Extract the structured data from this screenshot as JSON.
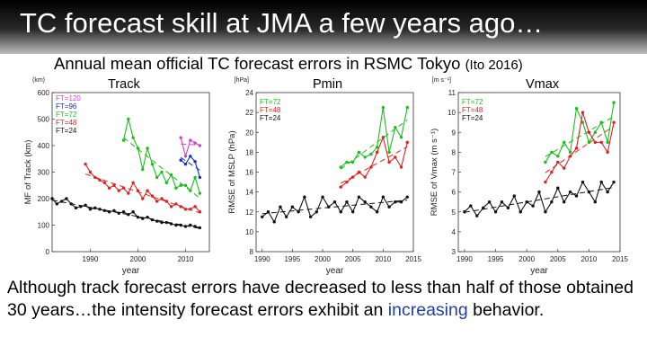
{
  "slide": {
    "title": "TC forecast skill at JMA a few years ago…",
    "caption": "Annual mean official TC forecast errors in RSMC Tokyo",
    "citation": "(Ito 2016)",
    "body_before": "Although track forecast errors have decreased to less than half of those obtained 30 years…the intensity forecast errors exhibit an ",
    "body_highlight": "increasing",
    "body_after": " behavior.",
    "highlight_color": "#1f3fa0"
  },
  "chart_data": [
    {
      "type": "line",
      "panel_label": "Track",
      "xlabel": "year",
      "ylabel": "MF of Track (km)",
      "unit_label": "(km)",
      "xlim": [
        1982,
        2015
      ],
      "ylim": [
        0,
        600
      ],
      "xticks": [
        1990,
        2000,
        2010
      ],
      "yticks": [
        0,
        100,
        200,
        300,
        400,
        500,
        600
      ],
      "legend_position": "top-left",
      "series": [
        {
          "name": "FT=120",
          "color": "#cc44cc",
          "marker": "dot",
          "x": [
            2009,
            2010,
            2011,
            2012,
            2013
          ],
          "y": [
            430,
            360,
            420,
            410,
            400
          ]
        },
        {
          "name": "FT=96",
          "color": "#1030cc",
          "marker": "dot",
          "x": [
            2009,
            2010,
            2011,
            2012,
            2013
          ],
          "y": [
            345,
            330,
            360,
            340,
            280
          ]
        },
        {
          "name": "FT=72",
          "color": "#1bbf1b",
          "marker": "dot",
          "x": [
            1997,
            1998,
            1999,
            2000,
            2001,
            2002,
            2003,
            2004,
            2005,
            2006,
            2007,
            2008,
            2009,
            2010,
            2011,
            2012,
            2013
          ],
          "y": [
            420,
            500,
            430,
            390,
            310,
            390,
            330,
            280,
            300,
            260,
            290,
            240,
            250,
            250,
            230,
            280,
            220
          ]
        },
        {
          "name": "FT=48",
          "color": "#dd2222",
          "marker": "dot",
          "x": [
            1989,
            1990,
            1991,
            1992,
            1993,
            1994,
            1995,
            1996,
            1997,
            1998,
            1999,
            2000,
            2001,
            2002,
            2003,
            2004,
            2005,
            2006,
            2007,
            2008,
            2009,
            2010,
            2011,
            2012,
            2013
          ],
          "y": [
            330,
            300,
            280,
            270,
            260,
            240,
            250,
            230,
            240,
            220,
            260,
            230,
            200,
            230,
            210,
            190,
            200,
            190,
            170,
            180,
            170,
            160,
            160,
            170,
            150
          ]
        },
        {
          "name": "FT=24",
          "color": "#111111",
          "marker": "dot",
          "x": [
            1982,
            1983,
            1984,
            1985,
            1986,
            1987,
            1988,
            1989,
            1990,
            1991,
            1992,
            1993,
            1994,
            1995,
            1996,
            1997,
            1998,
            1999,
            2000,
            2001,
            2002,
            2003,
            2004,
            2005,
            2006,
            2007,
            2008,
            2009,
            2010,
            2011,
            2012,
            2013
          ],
          "y": [
            200,
            180,
            190,
            200,
            180,
            165,
            170,
            175,
            160,
            165,
            160,
            155,
            150,
            155,
            145,
            150,
            140,
            150,
            130,
            125,
            130,
            120,
            115,
            110,
            110,
            105,
            100,
            100,
            95,
            100,
            95,
            90
          ]
        }
      ]
    },
    {
      "type": "line",
      "panel_label": "Pmin",
      "xlabel": "year",
      "ylabel": "RMSE of MSLP (hPa)",
      "unit_label": "[hPa]",
      "xlim": [
        1989,
        2015
      ],
      "ylim": [
        8,
        24
      ],
      "xticks": [
        1990,
        1995,
        2000,
        2005,
        2010,
        2015
      ],
      "yticks": [
        8,
        10,
        12,
        14,
        16,
        18,
        20,
        22,
        24
      ],
      "legend_position": "top-left",
      "series": [
        {
          "name": "FT=72",
          "color": "#1bbf1b",
          "marker": "dot",
          "x": [
            2003,
            2004,
            2005,
            2006,
            2007,
            2008,
            2009,
            2010,
            2011,
            2012,
            2013,
            2014
          ],
          "y": [
            16.5,
            17.0,
            17.0,
            18.0,
            17.5,
            17.8,
            18.5,
            22.5,
            18.0,
            20.5,
            19.5,
            22.5
          ]
        },
        {
          "name": "FT=48",
          "color": "#dd2222",
          "marker": "dot",
          "x": [
            2003,
            2004,
            2005,
            2006,
            2007,
            2008,
            2009,
            2010,
            2011,
            2012,
            2013,
            2014
          ],
          "y": [
            14.5,
            15.0,
            15.5,
            16.0,
            15.5,
            16.5,
            18.0,
            19.5,
            17.0,
            17.5,
            16.5,
            19.0
          ]
        },
        {
          "name": "FT=24",
          "color": "#111111",
          "marker": "dot",
          "x": [
            1990,
            1991,
            1992,
            1993,
            1994,
            1995,
            1996,
            1997,
            1998,
            1999,
            2000,
            2001,
            2002,
            2003,
            2004,
            2005,
            2006,
            2007,
            2008,
            2009,
            2010,
            2011,
            2012,
            2013,
            2014
          ],
          "y": [
            11.5,
            12.0,
            11.0,
            12.5,
            11.5,
            12.5,
            12.0,
            13.5,
            11.5,
            12.0,
            13.5,
            12.5,
            13.0,
            12.0,
            13.0,
            12.0,
            13.5,
            13.0,
            12.5,
            12.0,
            13.5,
            12.5,
            13.0,
            13.0,
            13.5
          ]
        }
      ]
    },
    {
      "type": "line",
      "panel_label": "Vmax",
      "xlabel": "year",
      "ylabel": "RMSE of Vmax (m s⁻¹)",
      "unit_label": "[m s⁻¹]",
      "xlim": [
        1989,
        2015
      ],
      "ylim": [
        3,
        11
      ],
      "xticks": [
        1990,
        1995,
        2000,
        2005,
        2010,
        2015
      ],
      "yticks": [
        3,
        4,
        5,
        6,
        7,
        8,
        9,
        10,
        11
      ],
      "legend_position": "top-left",
      "series": [
        {
          "name": "FT=72",
          "color": "#1bbf1b",
          "marker": "dot",
          "x": [
            2003,
            2004,
            2005,
            2006,
            2007,
            2008,
            2009,
            2010,
            2011,
            2012,
            2013,
            2014
          ],
          "y": [
            7.5,
            8.0,
            7.8,
            8.5,
            8.0,
            10.2,
            9.5,
            8.5,
            9.0,
            9.5,
            8.5,
            10.5
          ]
        },
        {
          "name": "FT=48",
          "color": "#dd2222",
          "marker": "dot",
          "x": [
            2003,
            2004,
            2005,
            2006,
            2007,
            2008,
            2009,
            2010,
            2011,
            2012,
            2013,
            2014
          ],
          "y": [
            6.5,
            7.0,
            7.5,
            7.2,
            7.8,
            8.2,
            10.0,
            9.0,
            8.5,
            8.5,
            8.0,
            9.5
          ]
        },
        {
          "name": "FT=24",
          "color": "#111111",
          "marker": "dot",
          "x": [
            1990,
            1991,
            1992,
            1993,
            1994,
            1995,
            1996,
            1997,
            1998,
            1999,
            2000,
            2001,
            2002,
            2003,
            2004,
            2005,
            2006,
            2007,
            2008,
            2009,
            2010,
            2011,
            2012,
            2013,
            2014
          ],
          "y": [
            5.0,
            5.3,
            4.8,
            5.2,
            5.5,
            5.0,
            5.5,
            5.2,
            5.8,
            5.0,
            5.5,
            5.3,
            6.0,
            5.0,
            5.5,
            6.2,
            5.5,
            6.0,
            5.8,
            6.5,
            6.0,
            5.5,
            6.5,
            6.0,
            6.5
          ]
        }
      ]
    }
  ]
}
